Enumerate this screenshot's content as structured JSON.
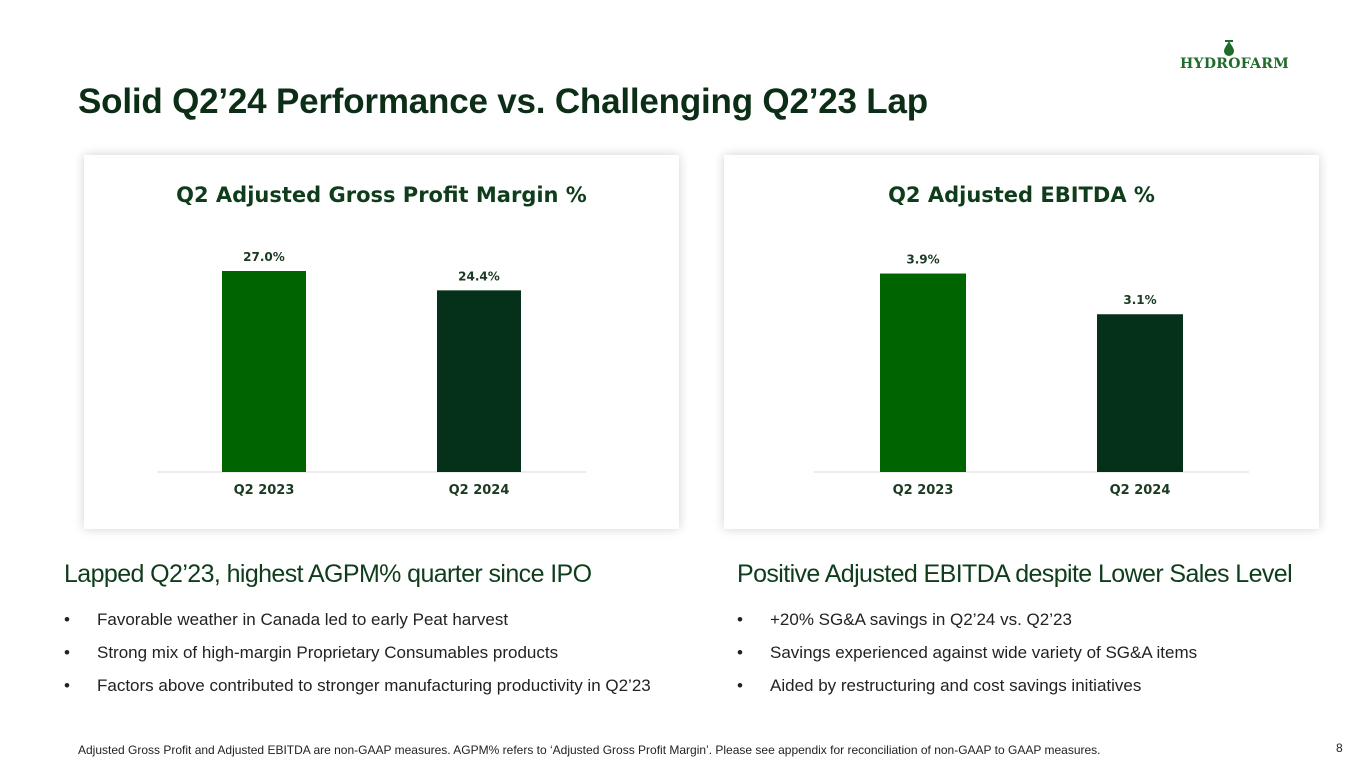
{
  "logo": {
    "text": "HYDROFARM",
    "color": "#1e6b2a"
  },
  "title": "Solid Q2’24 Performance vs. Challenging Q2’23 Lap",
  "colors": {
    "bar_2023": "#006400",
    "bar_2024": "#05311a",
    "axis": "#d9d9d9",
    "heading": "#0f3d1c"
  },
  "chart_data": [
    {
      "type": "bar",
      "title": "Q2 Adjusted Gross Profit Margin %",
      "categories": [
        "Q2 2023",
        "Q2 2024"
      ],
      "values": [
        27.0,
        24.4
      ],
      "data_labels": [
        "27.0%",
        "24.4%"
      ],
      "ylim": [
        0,
        27.0
      ],
      "grid": false,
      "legend": "none"
    },
    {
      "type": "bar",
      "title": "Q2 Adjusted EBITDA %",
      "categories": [
        "Q2 2023",
        "Q2 2024"
      ],
      "values": [
        3.9,
        3.1
      ],
      "data_labels": [
        "3.9%",
        "3.1%"
      ],
      "ylim": [
        0,
        4.5
      ],
      "grid": false,
      "legend": "none"
    }
  ],
  "left_section": {
    "heading": "Lapped Q2’23, highest AGPM% quarter since IPO",
    "bullets": [
      "Favorable weather in Canada led to early Peat harvest",
      "Strong mix of high-margin Proprietary Consumables products",
      "Factors above contributed to stronger manufacturing productivity in Q2’23"
    ]
  },
  "right_section": {
    "heading": "Positive Adjusted EBITDA despite Lower Sales Level",
    "bullets": [
      "+20% SG&A savings in Q2’24 vs. Q2’23",
      "Savings experienced against wide variety of SG&A items",
      "Aided by restructuring and cost savings initiatives"
    ]
  },
  "bullet_glyph": "•",
  "footnote": "Adjusted Gross Profit and Adjusted EBITDA are non-GAAP measures.  AGPM% refers to ‘Adjusted Gross Profit Margin’.  Please see appendix for reconciliation of non-GAAP to GAAP measures.",
  "page_number": "8"
}
